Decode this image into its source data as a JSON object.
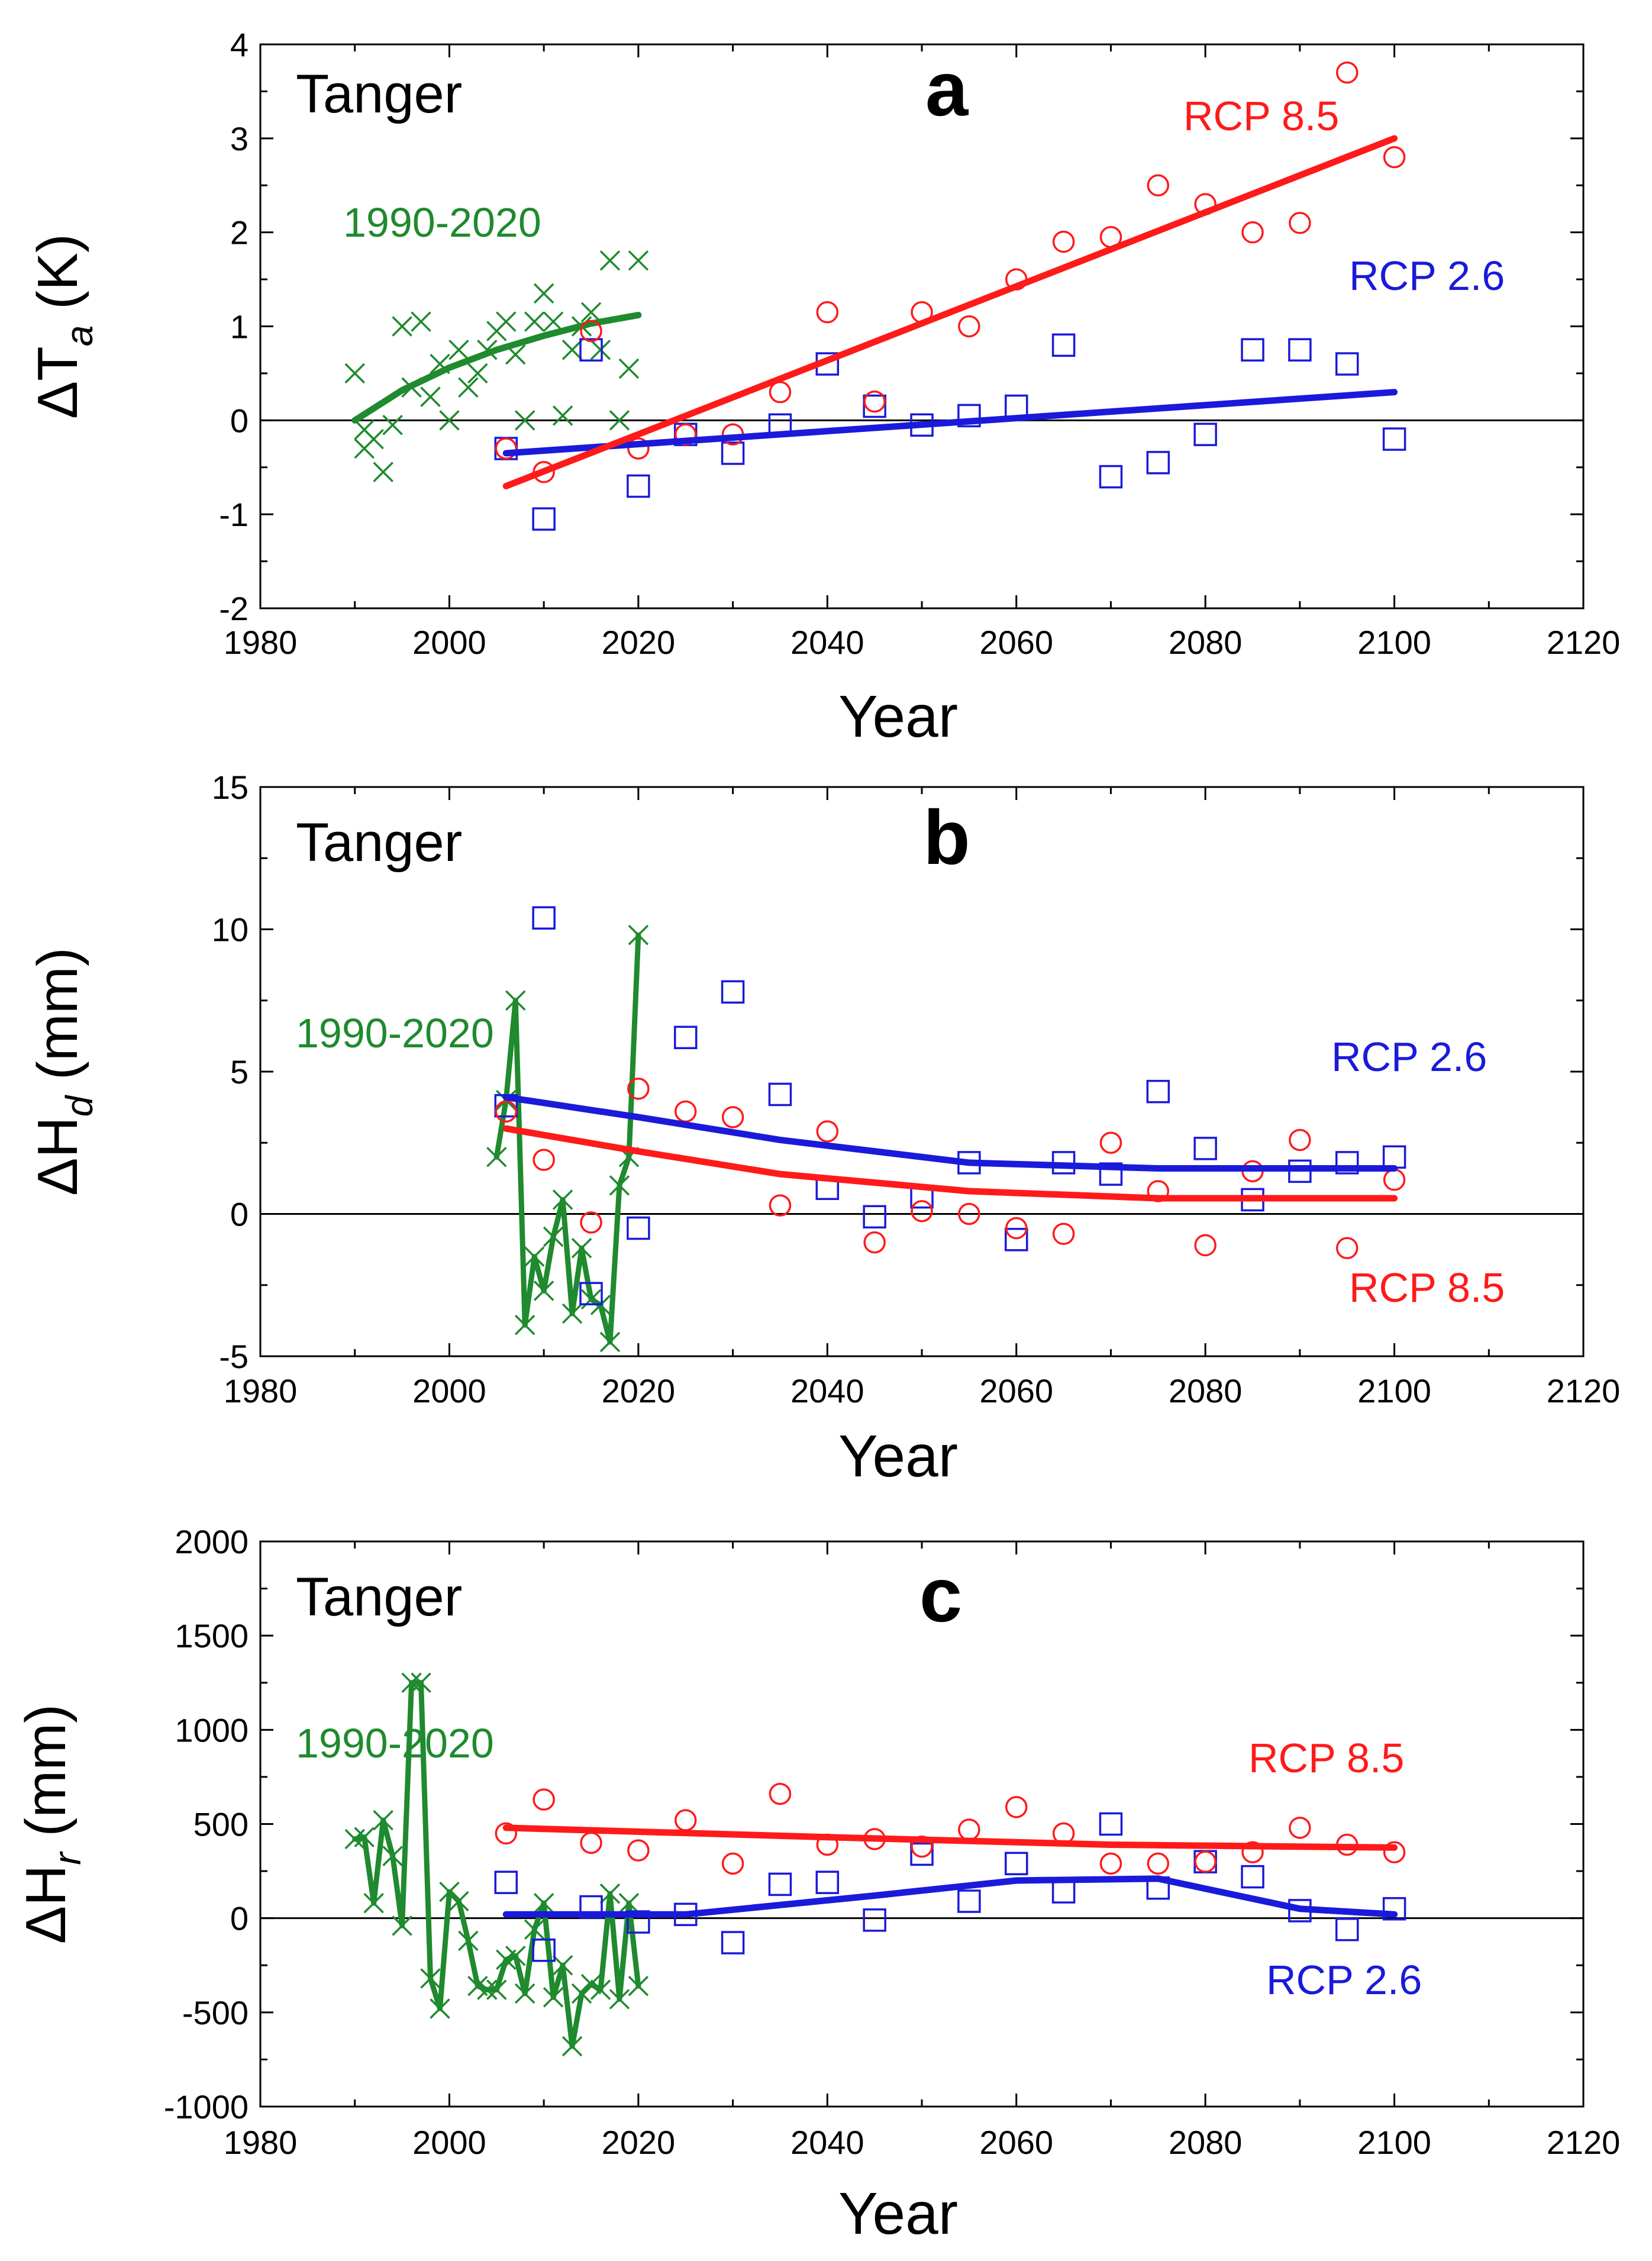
{
  "figure": {
    "station": "Tanger",
    "x_axis_label": "Year",
    "xlim": [
      1980,
      2120
    ],
    "x_ticks": [
      1980,
      2000,
      2020,
      2040,
      2060,
      2080,
      2100,
      2120
    ],
    "colors": {
      "historical": "#1f8a2e",
      "rcp26": "#1a1adb",
      "rcp85": "#ff1a1a",
      "axis": "#000000"
    }
  },
  "chart_data": [
    {
      "type": "scatter",
      "panel_letter": "a",
      "title": "Tanger",
      "ylabel_main": "ΔT",
      "ylabel_sub": "a",
      "ylabel_unit": "(K)",
      "xlabel": "Year",
      "ylim": [
        -2,
        4
      ],
      "y_ticks": [
        -2,
        -1,
        0,
        1,
        2,
        3,
        4
      ],
      "annotations": {
        "historical": "1990-2020",
        "rcp85": "RCP 8.5",
        "rcp26": "RCP 2.6"
      },
      "historical_points": {
        "x": [
          1990,
          1991,
          1991,
          1992,
          1993,
          1994,
          1995,
          1996,
          1997,
          1998,
          1999,
          2000,
          2001,
          2002,
          2003,
          2004,
          2005,
          2006,
          2007,
          2008,
          2009,
          2010,
          2011,
          2012,
          2013,
          2014,
          2015,
          2016,
          2017,
          2018,
          2019,
          2020
        ],
        "y": [
          0.5,
          -0.3,
          -0.1,
          -0.2,
          -0.55,
          -0.05,
          1.0,
          0.35,
          1.05,
          0.25,
          0.6,
          0.0,
          0.75,
          0.35,
          0.5,
          0.75,
          0.95,
          1.05,
          0.7,
          0.0,
          1.05,
          1.35,
          1.05,
          0.05,
          0.75,
          1.0,
          1.15,
          0.75,
          1.7,
          0.0,
          0.55,
          1.7
        ]
      },
      "historical_fit": {
        "x": [
          1990,
          1995,
          2000,
          2005,
          2010,
          2015,
          2020
        ],
        "y": [
          0.0,
          0.32,
          0.56,
          0.75,
          0.9,
          1.03,
          1.12
        ]
      },
      "rcp85_points": {
        "x": [
          2006,
          2010,
          2015,
          2020,
          2025,
          2030,
          2035,
          2040,
          2045,
          2050,
          2055,
          2060,
          2065,
          2070,
          2075,
          2080,
          2085,
          2090,
          2095,
          2100
        ],
        "y": [
          -0.3,
          -0.55,
          0.95,
          -0.3,
          -0.15,
          -0.15,
          0.3,
          1.15,
          0.2,
          1.15,
          1.0,
          1.5,
          1.9,
          1.95,
          2.5,
          2.3,
          2.0,
          2.1,
          3.7,
          2.8
        ]
      },
      "rcp85_fit": {
        "x": [
          2006,
          2100
        ],
        "y": [
          -0.7,
          3.0
        ]
      },
      "rcp26_points": {
        "x": [
          2006,
          2010,
          2015,
          2020,
          2025,
          2030,
          2035,
          2040,
          2045,
          2050,
          2055,
          2060,
          2065,
          2070,
          2075,
          2080,
          2085,
          2090,
          2095,
          2100
        ],
        "y": [
          -0.3,
          -1.05,
          0.75,
          -0.7,
          -0.15,
          -0.35,
          -0.05,
          0.6,
          0.15,
          -0.05,
          0.05,
          0.15,
          0.8,
          -0.6,
          -0.45,
          -0.15,
          0.75,
          0.75,
          0.6,
          -0.2
        ]
      },
      "rcp26_fit": {
        "x": [
          2006,
          2100
        ],
        "y": [
          -0.35,
          0.3
        ]
      }
    },
    {
      "type": "scatter",
      "panel_letter": "b",
      "title": "Tanger",
      "ylabel_main": "ΔH",
      "ylabel_sub": "d",
      "ylabel_unit": "(mm)",
      "xlabel": "Year",
      "ylim": [
        -5,
        15
      ],
      "y_ticks": [
        -5,
        0,
        5,
        10,
        15
      ],
      "annotations": {
        "historical": "1990-2020",
        "rcp85": "RCP 8.5",
        "rcp26": "RCP 2.6"
      },
      "historical_series": {
        "x": [
          2005,
          2006,
          2007,
          2008,
          2009,
          2010,
          2011,
          2012,
          2013,
          2014,
          2015,
          2016,
          2017,
          2018,
          2019,
          2020
        ],
        "y": [
          2.0,
          4.0,
          7.5,
          -3.9,
          -1.5,
          -2.7,
          -0.8,
          0.5,
          -3.5,
          -1.2,
          -3.0,
          -3.2,
          -4.5,
          1.0,
          2.0,
          9.8
        ]
      },
      "rcp85_points": {
        "x": [
          2006,
          2010,
          2015,
          2020,
          2025,
          2030,
          2035,
          2040,
          2045,
          2050,
          2055,
          2060,
          2065,
          2070,
          2075,
          2080,
          2085,
          2090,
          2095,
          2100
        ],
        "y": [
          3.6,
          1.9,
          -0.3,
          4.4,
          3.6,
          3.4,
          0.3,
          2.9,
          -1.0,
          0.1,
          0.0,
          -0.5,
          -0.7,
          2.5,
          0.8,
          -1.1,
          1.5,
          2.6,
          -1.2,
          1.2
        ]
      },
      "rcp85_fit": {
        "x": [
          2006,
          2020,
          2035,
          2055,
          2075,
          2100
        ],
        "y": [
          3.0,
          2.2,
          1.4,
          0.8,
          0.55,
          0.55
        ]
      },
      "rcp26_points": {
        "x": [
          2006,
          2010,
          2015,
          2020,
          2025,
          2030,
          2035,
          2040,
          2045,
          2050,
          2055,
          2060,
          2065,
          2070,
          2075,
          2080,
          2085,
          2090,
          2095,
          2100
        ],
        "y": [
          3.8,
          10.4,
          -2.8,
          -0.5,
          6.2,
          7.8,
          4.2,
          0.9,
          -0.1,
          0.6,
          1.8,
          -0.9,
          1.8,
          1.4,
          4.3,
          2.3,
          0.5,
          1.5,
          1.8,
          2.0
        ]
      },
      "rcp26_fit": {
        "x": [
          2006,
          2020,
          2035,
          2055,
          2075,
          2100
        ],
        "y": [
          4.1,
          3.4,
          2.6,
          1.8,
          1.6,
          1.6
        ]
      }
    },
    {
      "type": "scatter",
      "panel_letter": "c",
      "title": "Tanger",
      "ylabel_main": "ΔH",
      "ylabel_sub": "r",
      "ylabel_unit": "(mm)",
      "xlabel": "Year",
      "ylim": [
        -1000,
        2000
      ],
      "y_ticks": [
        -1000,
        -500,
        0,
        500,
        1000,
        1500,
        2000
      ],
      "annotations": {
        "historical": "1990-2020",
        "rcp85": "RCP 8.5",
        "rcp26": "RCP 2.6"
      },
      "historical_series": {
        "x": [
          1990,
          1991,
          1992,
          1993,
          1994,
          1995,
          1996,
          1997,
          1998,
          1999,
          2000,
          2001,
          2002,
          2003,
          2004,
          2005,
          2006,
          2007,
          2008,
          2009,
          2010,
          2011,
          2012,
          2013,
          2014,
          2015,
          2016,
          2017,
          2018,
          2019,
          2020
        ],
        "y": [
          420,
          430,
          80,
          520,
          330,
          -40,
          1250,
          1250,
          -320,
          -480,
          140,
          90,
          -120,
          -360,
          -380,
          -380,
          -220,
          -200,
          -400,
          -60,
          80,
          -420,
          -250,
          -680,
          -400,
          -350,
          -380,
          130,
          -430,
          80,
          -360
        ]
      },
      "rcp85_points": {
        "x": [
          2006,
          2010,
          2015,
          2020,
          2025,
          2030,
          2035,
          2040,
          2045,
          2050,
          2055,
          2060,
          2065,
          2070,
          2075,
          2080,
          2085,
          2090,
          2095,
          2100
        ],
        "y": [
          450,
          630,
          400,
          360,
          520,
          290,
          660,
          390,
          420,
          380,
          470,
          590,
          450,
          290,
          290,
          300,
          350,
          480,
          390,
          350
        ]
      },
      "rcp85_fit": {
        "x": [
          2006,
          2040,
          2070,
          2100
        ],
        "y": [
          480,
          430,
          390,
          375
        ]
      },
      "rcp26_points": {
        "x": [
          2006,
          2010,
          2015,
          2020,
          2025,
          2030,
          2035,
          2040,
          2045,
          2050,
          2055,
          2060,
          2065,
          2070,
          2075,
          2080,
          2085,
          2090,
          2095,
          2100
        ],
        "y": [
          190,
          -170,
          60,
          -20,
          20,
          -130,
          180,
          190,
          -10,
          340,
          90,
          290,
          140,
          500,
          160,
          300,
          220,
          40,
          -60,
          50
        ]
      },
      "rcp26_fit": {
        "x": [
          2006,
          2025,
          2045,
          2060,
          2075,
          2090,
          2100
        ],
        "y": [
          20,
          20,
          120,
          200,
          210,
          50,
          20
        ]
      }
    }
  ]
}
